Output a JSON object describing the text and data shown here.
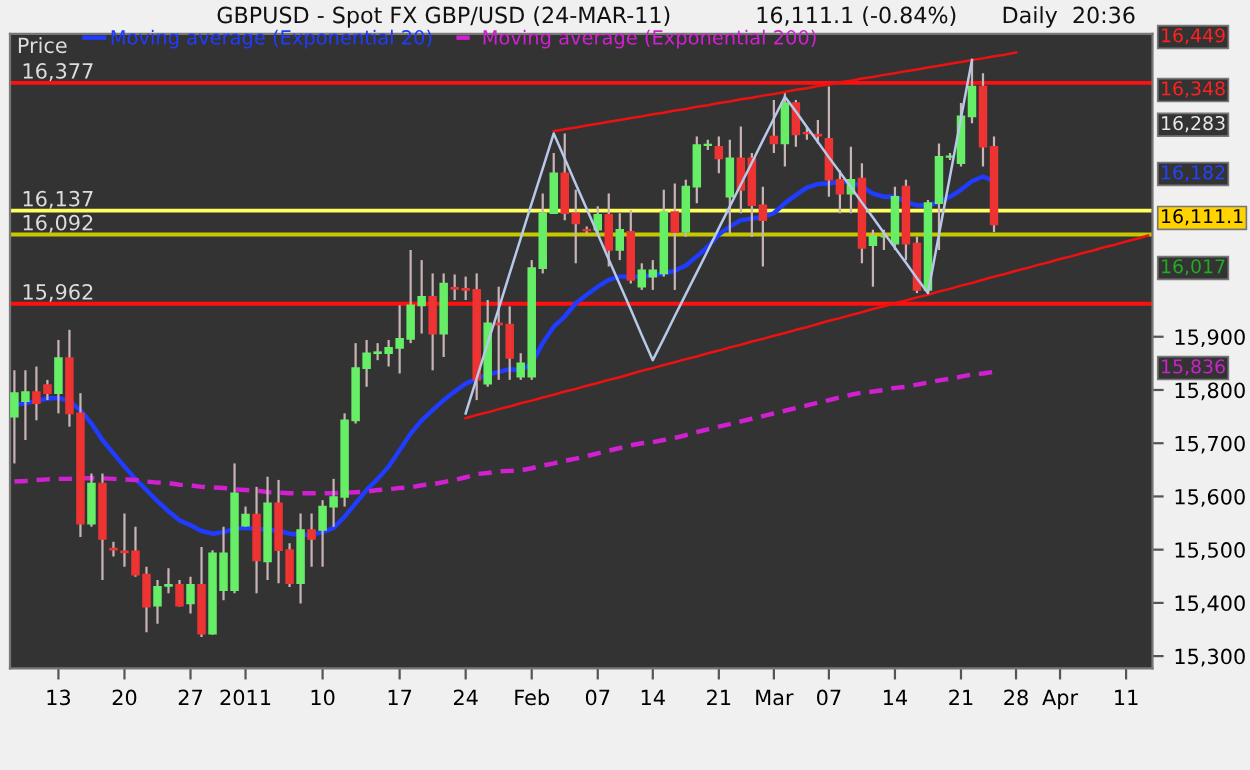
{
  "chart_data": {
    "type": "candlestick",
    "title": "GBPUSD - Spot FX GBP/USD (24-MAR-11)",
    "ylabel": "Price",
    "categories": [
      null,
      null,
      null,
      null,
      "13",
      null,
      null,
      null,
      null,
      null,
      "20",
      null,
      null,
      null,
      null,
      null,
      "27",
      null,
      null,
      null,
      null,
      "2011",
      null,
      null,
      null,
      null,
      null,
      null,
      "10",
      null,
      null,
      null,
      null,
      null,
      null,
      "17",
      null,
      null,
      null,
      null,
      null,
      "24",
      null,
      null,
      null,
      null,
      null,
      "Feb",
      null,
      null,
      null,
      null,
      null,
      "07",
      null,
      null,
      null,
      null,
      "14",
      null,
      null,
      null,
      null,
      null,
      "21",
      null,
      null,
      null,
      null,
      "Mar",
      null,
      null,
      null,
      null,
      "07",
      null,
      null,
      null,
      null,
      null,
      "14",
      null,
      null,
      null,
      null,
      null,
      "21",
      null,
      null,
      null,
      null,
      "28",
      null,
      null,
      null,
      "Apr",
      null,
      null,
      null,
      null,
      null,
      "11",
      null,
      null
    ],
    "ohlc": [
      [
        15750,
        15837,
        15662,
        15794
      ],
      [
        15779,
        15837,
        15706,
        15796
      ],
      [
        15796,
        15844,
        15743,
        15775
      ],
      [
        15809,
        15819,
        15781,
        15794
      ],
      [
        15794,
        15894,
        15756,
        15860
      ],
      [
        15860,
        15913,
        15731,
        15756
      ],
      [
        15756,
        15794,
        15524,
        15549
      ],
      [
        15549,
        15643,
        15543,
        15624
      ],
      [
        15624,
        15643,
        15443,
        15520
      ],
      [
        15502,
        15515,
        15487,
        15500
      ],
      [
        15497,
        15568,
        15468,
        15495
      ],
      [
        15497,
        15543,
        15449,
        15453
      ],
      [
        15453,
        15468,
        15345,
        15393
      ],
      [
        15395,
        15443,
        15361,
        15430
      ],
      [
        15432,
        15465,
        15418,
        15434
      ],
      [
        15434,
        15443,
        15393,
        15395
      ],
      [
        15399,
        15449,
        15380,
        15434
      ],
      [
        15434,
        15505,
        15336,
        15342
      ],
      [
        15342,
        15499,
        15340,
        15493
      ],
      [
        15424,
        15543,
        15405,
        15493
      ],
      [
        15424,
        15662,
        15418,
        15606
      ],
      [
        15545,
        15581,
        15543,
        15566
      ],
      [
        15566,
        15618,
        15418,
        15480
      ],
      [
        15478,
        15637,
        15443,
        15587
      ],
      [
        15587,
        15631,
        15437,
        15499
      ],
      [
        15499,
        15512,
        15430,
        15437
      ],
      [
        15437,
        15568,
        15399,
        15537
      ],
      [
        15537,
        15568,
        15468,
        15520
      ],
      [
        15537,
        15593,
        15468,
        15581
      ],
      [
        15581,
        15633,
        15543,
        15599
      ],
      [
        15599,
        15756,
        15581,
        15743
      ],
      [
        15743,
        15888,
        15737,
        15841
      ],
      [
        15841,
        15894,
        15806,
        15869
      ],
      [
        15869,
        15888,
        15856,
        15871
      ],
      [
        15869,
        15894,
        15844,
        15879
      ],
      [
        15879,
        15959,
        15831,
        15896
      ],
      [
        15896,
        16063,
        15888,
        15959
      ],
      [
        15959,
        16044,
        15906,
        15975
      ],
      [
        15975,
        16019,
        15837,
        15906
      ],
      [
        15906,
        16019,
        15862,
        16000
      ],
      [
        15992,
        16017,
        15969,
        15990
      ],
      [
        15990,
        16013,
        15969,
        15988
      ],
      [
        15988,
        16019,
        15781,
        15819
      ],
      [
        15812,
        15969,
        15806,
        15925
      ],
      [
        15925,
        15994,
        15819,
        15923
      ],
      [
        15923,
        15957,
        15819,
        15860
      ],
      [
        15825,
        15869,
        15819,
        15850
      ],
      [
        15825,
        16044,
        15819,
        16029
      ],
      [
        16029,
        16169,
        16019,
        16132
      ],
      [
        16132,
        16245,
        16132,
        16207
      ],
      [
        16207,
        16282,
        16119,
        16132
      ],
      [
        16132,
        16176,
        16038,
        16113
      ],
      [
        16101,
        16107,
        16094,
        16100
      ],
      [
        16101,
        16145,
        16094,
        16129
      ],
      [
        16129,
        16169,
        16032,
        16063
      ],
      [
        16063,
        16132,
        16044,
        16101
      ],
      [
        16097,
        16138,
        16000,
        16007
      ],
      [
        15994,
        16038,
        15988,
        16025
      ],
      [
        16013,
        16044,
        15988,
        16025
      ],
      [
        16019,
        16176,
        16013,
        16134
      ],
      [
        16134,
        16188,
        15988,
        16097
      ],
      [
        16097,
        16195,
        16088,
        16182
      ],
      [
        16182,
        16276,
        16151,
        16260
      ],
      [
        16260,
        16270,
        16251,
        16261
      ],
      [
        16257,
        16276,
        16207,
        16235
      ],
      [
        16163,
        16270,
        16094,
        16235
      ],
      [
        16235,
        16295,
        16132,
        16176
      ],
      [
        16235,
        16245,
        16088,
        16147
      ],
      [
        16147,
        16182,
        16032,
        16119
      ],
      [
        16276,
        16345,
        16245,
        16263
      ],
      [
        16263,
        16358,
        16220,
        16339
      ],
      [
        16339,
        16345,
        16257,
        16280
      ],
      [
        16283,
        16295,
        16270,
        16282
      ],
      [
        16280,
        16307,
        16263,
        16278
      ],
      [
        16272,
        16370,
        16163,
        16195
      ],
      [
        16195,
        16213,
        16132,
        16169
      ],
      [
        16169,
        16257,
        16132,
        16195
      ],
      [
        16197,
        16226,
        16038,
        16067
      ],
      [
        16072,
        16101,
        15994,
        16088
      ],
      [
        16088,
        16101,
        16063,
        16088
      ],
      [
        16075,
        16182,
        16063,
        16163
      ],
      [
        16182,
        16195,
        16044,
        16075
      ],
      [
        16075,
        16088,
        15982,
        15988
      ],
      [
        15988,
        16157,
        15982,
        16151
      ],
      [
        16151,
        16263,
        16063,
        16238
      ],
      [
        16238,
        16245,
        16232,
        16239
      ],
      [
        16226,
        16339,
        16220,
        16314
      ],
      [
        16314,
        16420,
        16301,
        16370
      ],
      [
        16370,
        16395,
        16220,
        16257
      ],
      [
        16257,
        16276,
        16097,
        16111
      ],
      null,
      null,
      null,
      null,
      null,
      null,
      null,
      null,
      null,
      null,
      null,
      null,
      null,
      null
    ],
    "series": [
      {
        "name": "Moving average (Exponential 20)",
        "type": "line",
        "color": "#1f3cff",
        "line_style": "solid",
        "values": [
          15772,
          15775,
          15779,
          15784,
          15785,
          15779,
          15762,
          15737,
          15706,
          15681,
          15656,
          15633,
          15612,
          15591,
          15572,
          15555,
          15546,
          15535,
          15530,
          15533,
          15539,
          15541,
          15539,
          15538,
          15535,
          15530,
          15528,
          15528,
          15533,
          15541,
          15562,
          15587,
          15612,
          15633,
          15656,
          15687,
          15718,
          15743,
          15762,
          15781,
          15797,
          15812,
          15821,
          15829,
          15834,
          15839,
          15837,
          15850,
          15888,
          15919,
          15938,
          15963,
          15979,
          15994,
          16007,
          16013,
          16013,
          16013,
          16016,
          16019,
          16024,
          16034,
          16051,
          16069,
          16092,
          16107,
          16119,
          16122,
          16125,
          16132,
          16151,
          16166,
          16180,
          16187,
          16188,
          16191,
          16191,
          16182,
          16169,
          16163,
          16163,
          16154,
          16147,
          16147,
          16153,
          16163,
          16176,
          16192,
          16201,
          16192,
          null,
          null,
          null,
          null,
          null,
          null,
          null,
          null,
          null,
          null,
          null,
          null,
          null,
          null
        ]
      },
      {
        "name": "Moving average (Exponential 200)",
        "type": "line",
        "color": "#d020d0",
        "line_style": "dashed",
        "values": [
          15628,
          15629,
          15631,
          15632,
          15633,
          15633,
          15634,
          15634,
          15634,
          15633,
          15632,
          15631,
          15628,
          15626,
          15625,
          15622,
          15621,
          15618,
          15617,
          15616,
          15613,
          15612,
          15611,
          15608,
          15607,
          15606,
          15606,
          15606,
          15606,
          15606,
          15607,
          15608,
          15609,
          15612,
          15613,
          15616,
          15617,
          15621,
          15623,
          15627,
          15631,
          15636,
          15642,
          15644,
          15647,
          15648,
          15649,
          15653,
          15658,
          15662,
          15667,
          15671,
          15676,
          15681,
          15686,
          15691,
          15696,
          15700,
          15702,
          15706,
          15710,
          15715,
          15721,
          15726,
          15731,
          15736,
          15741,
          15746,
          15751,
          15756,
          15761,
          15766,
          15771,
          15776,
          15781,
          15786,
          15791,
          15795,
          15797,
          15800,
          15804,
          15806,
          15810,
          15814,
          15818,
          15821,
          15825,
          15829,
          15831,
          15834,
          null,
          null,
          null,
          null,
          null,
          null,
          null,
          null,
          null,
          null,
          null,
          null,
          null,
          null
        ]
      },
      {
        "type": "line",
        "color": "#ee1111",
        "line_style": "solid",
        "values": [
          null,
          null,
          null,
          null,
          null,
          null,
          null,
          null,
          null,
          null,
          null,
          null,
          null,
          null,
          null,
          null,
          null,
          null,
          null,
          null,
          null,
          null,
          null,
          null,
          null,
          null,
          null,
          null,
          null,
          null,
          null,
          null,
          null,
          null,
          null,
          null,
          null,
          null,
          null,
          null,
          null,
          null,
          null,
          null,
          null,
          null,
          null,
          null,
          null,
          16286,
          16290,
          16293,
          16297,
          16300,
          16304,
          16307,
          16311,
          16314,
          16318,
          16321,
          16325,
          16328,
          16332,
          16335,
          16339,
          16342,
          16346,
          16349,
          16353,
          16356,
          16360,
          16364,
          16367,
          16371,
          16374,
          16378,
          16381,
          16385,
          16388,
          16392,
          16395,
          16399,
          16402,
          16406,
          16409,
          16413,
          16416,
          16420,
          16423,
          16427,
          16430,
          16434,
          null,
          null,
          null,
          null,
          null,
          null,
          null,
          null,
          null,
          null,
          null,
          null
        ]
      },
      {
        "type": "line",
        "color": "#ee1111",
        "line_style": "solid",
        "values": [
          null,
          null,
          null,
          null,
          null,
          null,
          null,
          null,
          null,
          null,
          null,
          null,
          null,
          null,
          null,
          null,
          null,
          null,
          null,
          null,
          null,
          null,
          null,
          null,
          null,
          null,
          null,
          null,
          null,
          null,
          null,
          null,
          null,
          null,
          null,
          null,
          null,
          null,
          null,
          null,
          null,
          15747,
          15753,
          15758,
          15764,
          15769,
          15775,
          15780,
          15786,
          15791,
          15797,
          15802,
          15808,
          15813,
          15819,
          15824,
          15830,
          15836,
          15841,
          15847,
          15852,
          15858,
          15863,
          15869,
          15874,
          15880,
          15885,
          15891,
          15896,
          15902,
          15907,
          15913,
          15918,
          15924,
          15930,
          15935,
          15941,
          15946,
          15952,
          15957,
          15963,
          15968,
          15974,
          15979,
          15985,
          15990,
          15996,
          16001,
          16007,
          16013,
          16018,
          16024,
          16029,
          16035,
          16040,
          16046,
          16051,
          16057,
          16062,
          16068,
          16073,
          16079,
          16084,
          16090
        ]
      },
      {
        "type": "line",
        "color": "#b8c8e8",
        "line_style": "solid",
        "values": [
          null,
          null,
          null,
          null,
          null,
          null,
          null,
          null,
          null,
          null,
          null,
          null,
          null,
          null,
          null,
          null,
          null,
          null,
          null,
          null,
          null,
          null,
          null,
          null,
          null,
          null,
          null,
          null,
          null,
          null,
          null,
          null,
          null,
          null,
          null,
          null,
          null,
          null,
          null,
          null,
          null,
          15756,
          15822,
          15888,
          15953,
          16019,
          16085,
          16151,
          16216,
          16282,
          16235,
          16187,
          16140,
          16093,
          16045,
          15998,
          15951,
          15903,
          15856,
          15897,
          15939,
          15980,
          16021,
          16062,
          16104,
          16145,
          16186,
          16227,
          16269,
          16310,
          16351,
          16323,
          16294,
          16266,
          16237,
          16209,
          16181,
          16152,
          16124,
          16095,
          16067,
          16039,
          16010,
          15982,
          16092,
          16201,
          16311,
          16420,
          null,
          null,
          null,
          null,
          null,
          null,
          null,
          null,
          null,
          null,
          null,
          null,
          null,
          null,
          null,
          null
        ]
      }
    ],
    "ref_lines": [
      {
        "axis": "y",
        "value": 16377,
        "label": "16,377",
        "color": "#ff1010"
      },
      {
        "axis": "y",
        "value": 16137,
        "label": "16,137",
        "color": "#ffff60"
      },
      {
        "axis": "y",
        "value": 16092,
        "label": "16,092",
        "color": "#c8c800"
      },
      {
        "axis": "y",
        "value": 15962,
        "label": "15,962",
        "color": "#ff1010"
      }
    ],
    "annotations": [
      "16,111.1 (-0.84%)",
      "Daily  20:36",
      "16,449",
      "16,348",
      "16,283",
      "16,182",
      "16,111.1",
      "16,017",
      "15,836"
    ],
    "ylim": [
      15277,
      16469
    ],
    "yticks": [
      {
        "value": 15300,
        "label": "15,300"
      },
      {
        "value": 15400,
        "label": "15,400"
      },
      {
        "value": 15500,
        "label": "15,500"
      },
      {
        "value": 15600,
        "label": "15,600"
      },
      {
        "value": 15700,
        "label": "15,700"
      },
      {
        "value": 15800,
        "label": "15,800"
      },
      {
        "value": 15900,
        "label": "15,900"
      }
    ],
    "legend": "top left",
    "grid": false
  }
}
